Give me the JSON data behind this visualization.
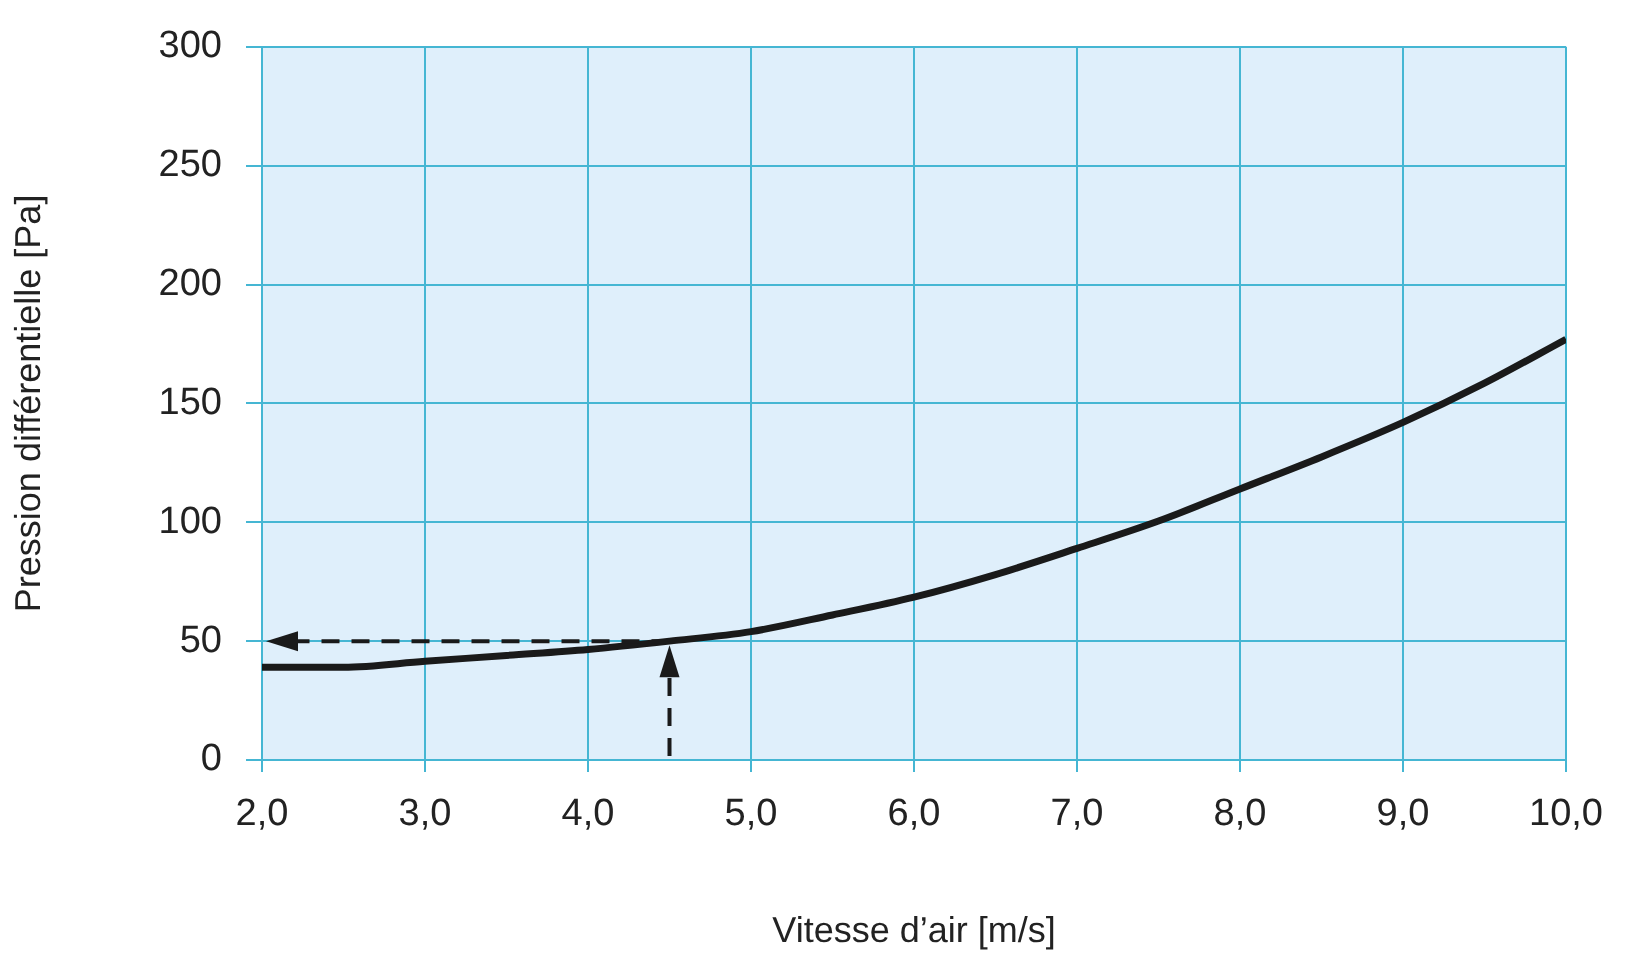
{
  "chart_data": {
    "type": "line",
    "xlabel": "Vitesse d’air [m/s]",
    "ylabel": "Pression différentielle [Pa]",
    "x": [
      2,
      2.5,
      3,
      3.5,
      4,
      4.5,
      5,
      5.5,
      6,
      6.5,
      7,
      7.5,
      8,
      8.5,
      9,
      9.5,
      10
    ],
    "series": [
      {
        "color": "#1a1a1a",
        "values": [
          39,
          39,
          41.5,
          44,
          46.5,
          50,
          54,
          61,
          68.5,
          78,
          89,
          100.5,
          114,
          127.5,
          142,
          158.5,
          177
        ]
      }
    ],
    "xlim": [
      2,
      10
    ],
    "xticks": [
      {
        "value": 2,
        "label": "2,0"
      },
      {
        "value": 3,
        "label": "3,0"
      },
      {
        "value": 4,
        "label": "4,0"
      },
      {
        "value": 5,
        "label": "5,0"
      },
      {
        "value": 6,
        "label": "6,0"
      },
      {
        "value": 7,
        "label": "7,0"
      },
      {
        "value": 8,
        "label": "8,0"
      },
      {
        "value": 9,
        "label": "9,0"
      },
      {
        "value": 10,
        "label": "10,0"
      }
    ],
    "ylim": [
      0,
      300
    ],
    "yticks": [
      0,
      50,
      100,
      150,
      200,
      250,
      300
    ],
    "grid": true,
    "legend": false,
    "marker": "none",
    "line_style": "solid"
  }
}
